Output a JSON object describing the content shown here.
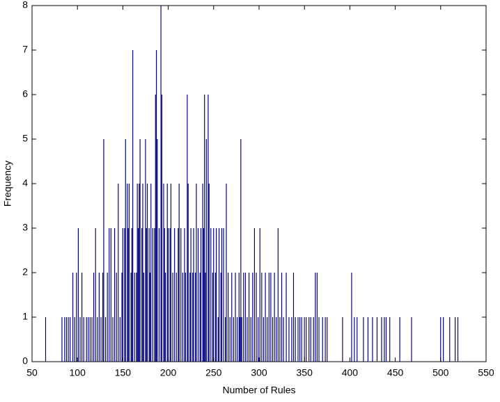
{
  "chart_data": {
    "type": "bar",
    "x_label": "Number of Rules",
    "y_label": "Frequency",
    "color": "#000080",
    "x": [
      65,
      83,
      86,
      88,
      90,
      92,
      95,
      97,
      99,
      101,
      103,
      105,
      107,
      110,
      112,
      114,
      116,
      118,
      120,
      122,
      124,
      126,
      128,
      129,
      131,
      133,
      135,
      137,
      139,
      141,
      143,
      145,
      147,
      149,
      150,
      152,
      153,
      155,
      156,
      157,
      159,
      160,
      161,
      163,
      165,
      166,
      167,
      168,
      169,
      171,
      172,
      173,
      175,
      176,
      177,
      179,
      180,
      181,
      183,
      185,
      186,
      187,
      188,
      190,
      192,
      193,
      195,
      196,
      197,
      199,
      200,
      202,
      203,
      205,
      207,
      209,
      211,
      212,
      214,
      216,
      218,
      219,
      221,
      222,
      224,
      225,
      227,
      228,
      230,
      231,
      233,
      235,
      236,
      238,
      239,
      240,
      241,
      242,
      244,
      245,
      247,
      249,
      250,
      252,
      253,
      255,
      256,
      258,
      259,
      261,
      263,
      264,
      266,
      268,
      270,
      272,
      274,
      276,
      278,
      279,
      280,
      281,
      283,
      285,
      287,
      289,
      291,
      293,
      295,
      297,
      299,
      301,
      303,
      305,
      307,
      309,
      311,
      313,
      315,
      317,
      319,
      321,
      323,
      325,
      327,
      330,
      333,
      336,
      338,
      340,
      343,
      345,
      347,
      350,
      352,
      355,
      357,
      360,
      362,
      364,
      366,
      370,
      373,
      375,
      392,
      402,
      405,
      408,
      415,
      420,
      425,
      430,
      435,
      438,
      440,
      444,
      455,
      468,
      500,
      503,
      510,
      516,
      519
    ],
    "values": [
      1,
      1,
      1,
      1,
      1,
      1,
      2,
      1,
      2,
      3,
      1,
      2,
      1,
      1,
      1,
      1,
      1,
      2,
      3,
      1,
      2,
      1,
      2,
      5,
      1,
      2,
      3,
      3,
      1,
      3,
      2,
      4,
      1,
      2,
      3,
      3,
      5,
      4,
      3,
      4,
      2,
      3,
      7,
      2,
      2,
      4,
      3,
      4,
      5,
      3,
      4,
      2,
      5,
      3,
      4,
      3,
      2,
      4,
      3,
      3,
      6,
      7,
      5,
      3,
      8,
      6,
      4,
      3,
      2,
      4,
      3,
      3,
      4,
      2,
      3,
      2,
      3,
      4,
      3,
      2,
      3,
      2,
      6,
      4,
      2,
      3,
      2,
      3,
      2,
      4,
      3,
      2,
      3,
      4,
      3,
      6,
      2,
      5,
      6,
      4,
      3,
      2,
      3,
      2,
      3,
      1,
      3,
      2,
      3,
      3,
      1,
      4,
      2,
      1,
      2,
      1,
      2,
      1,
      2,
      1,
      5,
      1,
      2,
      2,
      1,
      2,
      1,
      2,
      3,
      2,
      1,
      3,
      2,
      1,
      2,
      1,
      2,
      2,
      1,
      2,
      1,
      3,
      1,
      2,
      1,
      2,
      1,
      1,
      2,
      1,
      1,
      1,
      1,
      1,
      1,
      1,
      1,
      1,
      2,
      2,
      1,
      1,
      1,
      1,
      1,
      2,
      1,
      1,
      1,
      1,
      1,
      1,
      1,
      1,
      1,
      1,
      1,
      1,
      1,
      1,
      1,
      1,
      1
    ],
    "xlim": [
      50,
      550
    ],
    "xticks": [
      50,
      100,
      150,
      200,
      250,
      300,
      350,
      400,
      450,
      500,
      550
    ],
    "ylim": [
      0,
      8
    ],
    "yticks": [
      0,
      1,
      2,
      3,
      4,
      5,
      6,
      7,
      8
    ]
  }
}
